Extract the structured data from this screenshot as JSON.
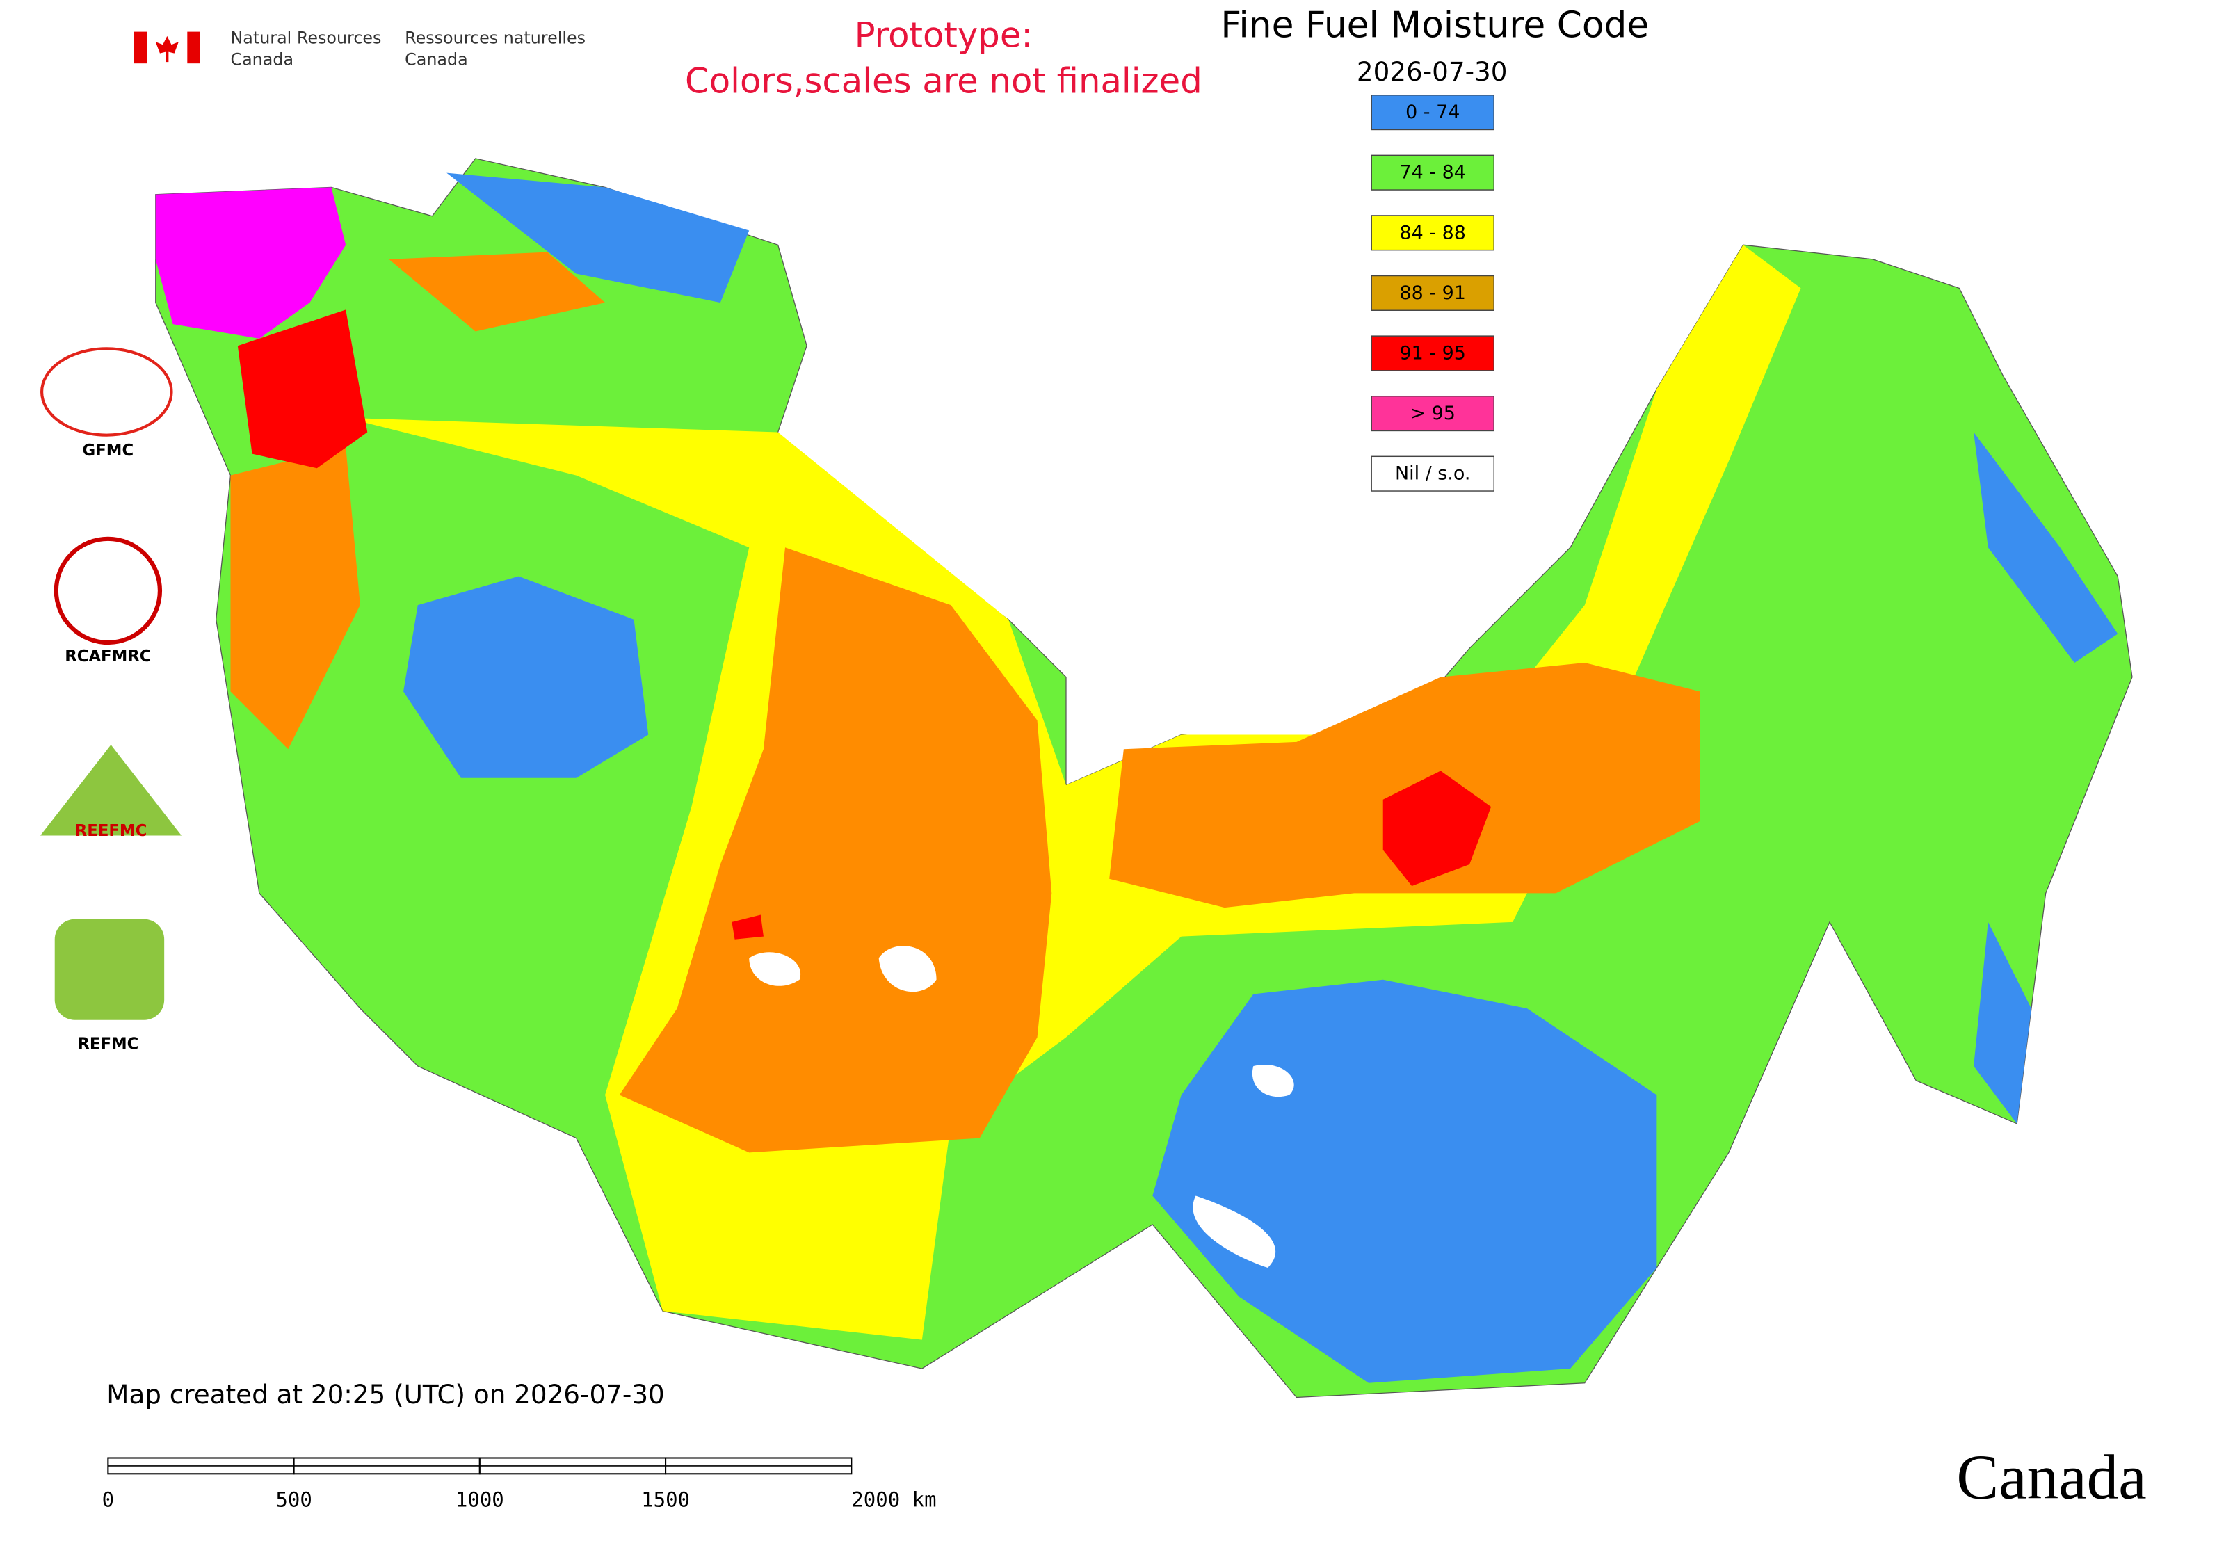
{
  "header": {
    "org_en": [
      "Natural Resources",
      "Canada"
    ],
    "org_fr": [
      "Ressources naturelles",
      "Canada"
    ],
    "notice": [
      "Prototype:",
      "Colors,scales are not finalized"
    ]
  },
  "title": "Fine Fuel Moisture Code",
  "date": "2026-07-30",
  "legend": [
    {
      "label": "0 - 74",
      "color": "#3a8ef0"
    },
    {
      "label": "74 - 84",
      "color": "#6cf03a"
    },
    {
      "label": "84 - 88",
      "color": "#ffff00"
    },
    {
      "label": "88 - 91",
      "color": "#daa000"
    },
    {
      "label": "91 - 95",
      "color": "#ff0000"
    },
    {
      "label": "> 95",
      "color": "#ff3399"
    },
    {
      "label": "Nil / s.o.",
      "color": "#ffffff"
    }
  ],
  "logos": [
    "GFMC",
    "RCAFMRC",
    "REEFMC",
    "REFMC"
  ],
  "footer": {
    "created": "Map created at 20:25 (UTC) on 2026-07-30",
    "scale_labels": [
      "0",
      "500",
      "1000",
      "1500",
      "2000 km"
    ],
    "wordmark": "Canada"
  }
}
